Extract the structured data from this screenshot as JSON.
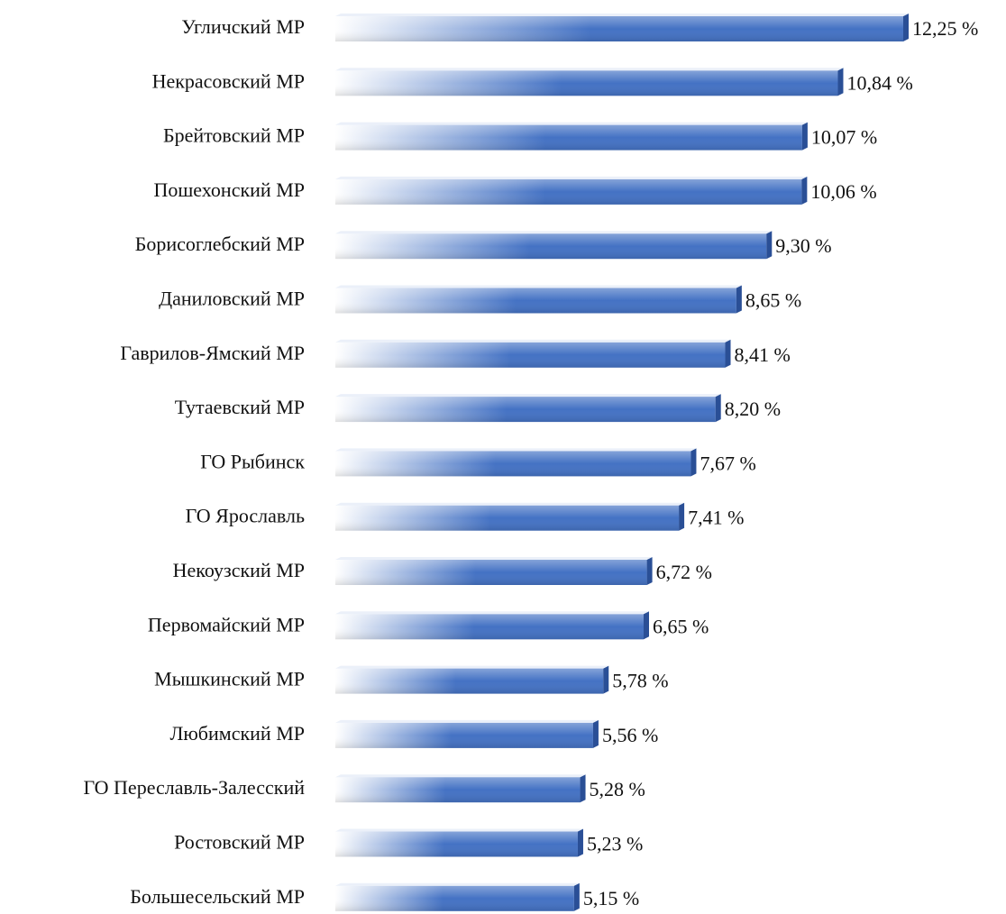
{
  "chart_data": {
    "type": "bar",
    "orientation": "horizontal",
    "color": "#4472c4",
    "categories": [
      "Угличский МР",
      "Некрасовский МР",
      "Брейтовский МР",
      "Пошехонский МР",
      "Борисоглебский МР",
      "Даниловский МР",
      "Гаврилов-Ямский МР",
      "Тутаевский МР",
      "ГО Рыбинск",
      "ГО Ярославль",
      "Некоузский МР",
      "Первомайский МР",
      "Мышкинский МР",
      "Любимский МР",
      "ГО Переславль-Залесский",
      "Ростовский МР",
      "Большесельский МР"
    ],
    "values": [
      12.25,
      10.84,
      10.07,
      10.06,
      9.3,
      8.65,
      8.41,
      8.2,
      7.67,
      7.41,
      6.72,
      6.65,
      5.78,
      5.56,
      5.28,
      5.23,
      5.15
    ],
    "value_labels": [
      "12,25 %",
      "10,84 %",
      "10,07 %",
      "10,06 %",
      "9,30 %",
      "8,65 %",
      "8,41 %",
      "8,20 %",
      "7,67 %",
      "7,41 %",
      "6,72 %",
      "6,65 %",
      "5,78 %",
      "5,56 %",
      "5,28 %",
      "5,23 %",
      "5,15 %"
    ]
  }
}
